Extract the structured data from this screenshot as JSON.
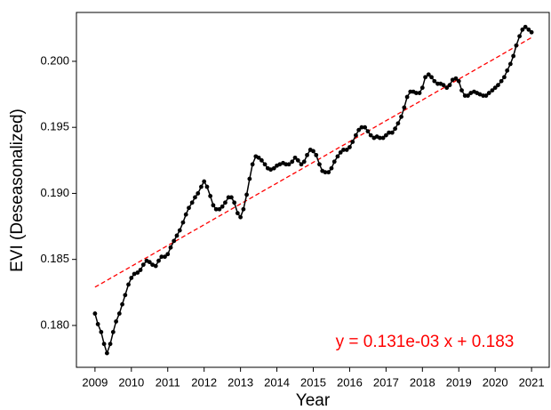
{
  "chart_data": {
    "type": "line",
    "x_label": "Year",
    "y_label": "EVI (Deseasonalized)",
    "annotation": "y = 0.131e-03 x + 0.183",
    "color": "black",
    "x": [
      2009.0,
      2009.08,
      2009.17,
      2009.25,
      2009.33,
      2009.42,
      2009.5,
      2009.58,
      2009.67,
      2009.75,
      2009.83,
      2009.92,
      2010.0,
      2010.08,
      2010.17,
      2010.25,
      2010.33,
      2010.42,
      2010.5,
      2010.58,
      2010.67,
      2010.75,
      2010.83,
      2010.92,
      2011.0,
      2011.08,
      2011.17,
      2011.25,
      2011.33,
      2011.42,
      2011.5,
      2011.58,
      2011.67,
      2011.75,
      2011.83,
      2011.92,
      2012.0,
      2012.08,
      2012.17,
      2012.25,
      2012.33,
      2012.42,
      2012.5,
      2012.58,
      2012.67,
      2012.75,
      2012.83,
      2012.92,
      2013.0,
      2013.08,
      2013.17,
      2013.25,
      2013.33,
      2013.42,
      2013.5,
      2013.58,
      2013.67,
      2013.75,
      2013.83,
      2013.92,
      2014.0,
      2014.08,
      2014.17,
      2014.25,
      2014.33,
      2014.42,
      2014.5,
      2014.58,
      2014.67,
      2014.75,
      2014.83,
      2014.92,
      2015.0,
      2015.08,
      2015.17,
      2015.25,
      2015.33,
      2015.42,
      2015.5,
      2015.58,
      2015.67,
      2015.75,
      2015.83,
      2015.92,
      2016.0,
      2016.08,
      2016.17,
      2016.25,
      2016.33,
      2016.42,
      2016.5,
      2016.58,
      2016.67,
      2016.75,
      2016.83,
      2016.92,
      2017.0,
      2017.08,
      2017.17,
      2017.25,
      2017.33,
      2017.42,
      2017.5,
      2017.58,
      2017.67,
      2017.75,
      2017.83,
      2017.92,
      2018.0,
      2018.08,
      2018.17,
      2018.25,
      2018.33,
      2018.42,
      2018.5,
      2018.58,
      2018.67,
      2018.75,
      2018.83,
      2018.92,
      2019.0,
      2019.08,
      2019.17,
      2019.25,
      2019.33,
      2019.42,
      2019.5,
      2019.58,
      2019.67,
      2019.75,
      2019.83,
      2019.92,
      2020.0,
      2020.08,
      2020.17,
      2020.25,
      2020.33,
      2020.42,
      2020.5,
      2020.58,
      2020.67,
      2020.75,
      2020.83,
      2020.92,
      2021.0
    ],
    "values": [
      0.1809,
      0.1801,
      0.1795,
      0.1786,
      0.1779,
      0.1786,
      0.1795,
      0.1803,
      0.1809,
      0.1816,
      0.1823,
      0.1831,
      0.1836,
      0.1839,
      0.184,
      0.1842,
      0.1846,
      0.1849,
      0.1848,
      0.1846,
      0.1845,
      0.1849,
      0.1852,
      0.1852,
      0.1854,
      0.1859,
      0.1864,
      0.1868,
      0.1872,
      0.1878,
      0.1884,
      0.1889,
      0.1893,
      0.1897,
      0.19,
      0.1905,
      0.1909,
      0.1905,
      0.1898,
      0.1891,
      0.1888,
      0.1888,
      0.189,
      0.1893,
      0.1897,
      0.1897,
      0.1893,
      0.1885,
      0.1882,
      0.1888,
      0.1899,
      0.1911,
      0.1922,
      0.1928,
      0.1927,
      0.1925,
      0.1922,
      0.1919,
      0.1918,
      0.1919,
      0.1921,
      0.1922,
      0.1923,
      0.1922,
      0.1922,
      0.1924,
      0.1927,
      0.1925,
      0.1922,
      0.1924,
      0.1929,
      0.1933,
      0.1932,
      0.1929,
      0.1922,
      0.1917,
      0.1916,
      0.1916,
      0.1919,
      0.1924,
      0.1928,
      0.1931,
      0.1933,
      0.1933,
      0.1935,
      0.1939,
      0.1944,
      0.1948,
      0.195,
      0.195,
      0.1947,
      0.1944,
      0.1942,
      0.1943,
      0.1942,
      0.1942,
      0.1944,
      0.1946,
      0.1946,
      0.1949,
      0.1953,
      0.1958,
      0.1965,
      0.1973,
      0.1977,
      0.1977,
      0.1976,
      0.1976,
      0.198,
      0.1988,
      0.199,
      0.1988,
      0.1985,
      0.1983,
      0.1983,
      0.1982,
      0.198,
      0.1982,
      0.1986,
      0.1987,
      0.1985,
      0.1978,
      0.1974,
      0.1974,
      0.1976,
      0.1977,
      0.1976,
      0.1975,
      0.1974,
      0.1974,
      0.1976,
      0.1978,
      0.198,
      0.1982,
      0.1985,
      0.1988,
      0.1993,
      0.1998,
      0.2004,
      0.2012,
      0.2019,
      0.2024,
      0.2026,
      0.2024,
      0.2022
    ],
    "trend_line": {
      "x": [
        2009,
        2021
      ],
      "values": [
        0.1829,
        0.2018
      ],
      "color": "red"
    },
    "xlim": [
      2008.49,
      2021.51
    ],
    "ylim": [
      0.17683,
      0.2037
    ],
    "xticks": [
      2009,
      2010,
      2011,
      2012,
      2013,
      2014,
      2015,
      2016,
      2017,
      2018,
      2019,
      2020,
      2021
    ],
    "yticks": [
      {
        "value": 0.18,
        "label": "0.180"
      },
      {
        "value": 0.185,
        "label": "0.185"
      },
      {
        "value": 0.19,
        "label": "0.190"
      },
      {
        "value": 0.195,
        "label": "0.195"
      },
      {
        "value": 0.2,
        "label": "0.200"
      }
    ]
  }
}
